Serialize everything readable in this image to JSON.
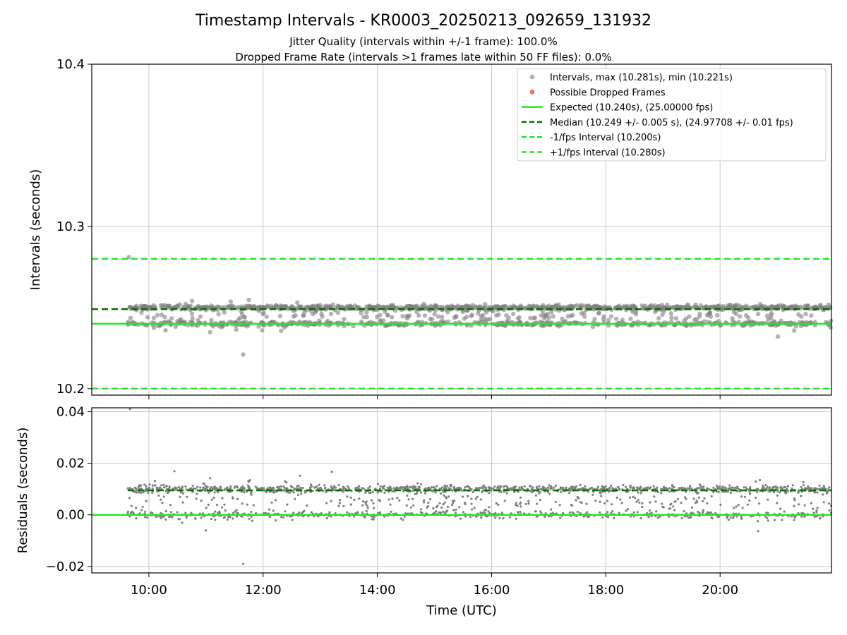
{
  "chart_data": [
    {
      "type": "scatter",
      "title": "Timestamp Intervals - KR0003_20250213_092659_131932",
      "subtitle_lines": [
        "Jitter Quality (intervals within +/-1 frame): 100.0%",
        "Dropped Frame Rate (intervals >1 frames late within 50 FF files): 0.0%"
      ],
      "xlabel": "",
      "ylabel": "Intervals (seconds)",
      "ylim": [
        10.196,
        10.4
      ],
      "xlim_hours": [
        9.0,
        21.95
      ],
      "y_ticks": [
        "10.2",
        "10.3",
        "10.4"
      ],
      "grid": true,
      "legend_position": "top-right",
      "legend": [
        {
          "label": "Intervals, max (10.281s), min (10.221s)",
          "kind": "marker",
          "color": "#a0a0a0"
        },
        {
          "label": "Possible Dropped Frames",
          "kind": "marker",
          "color": "#f07070"
        },
        {
          "label": "Expected (10.240s), (25.00000 fps)",
          "kind": "solid",
          "color": "#22e822"
        },
        {
          "label": "Median (10.249 +/- 0.005 s), (24.97708 +/- 0.01 fps)",
          "kind": "dashed",
          "color": "#007000"
        },
        {
          "label": "-1/fps Interval (10.200s)",
          "kind": "dashed",
          "color": "#22e822"
        },
        {
          "label": "+1/fps Interval (10.280s)",
          "kind": "dashed",
          "color": "#22e822"
        }
      ],
      "reference_lines": {
        "expected": 10.24,
        "median": 10.249,
        "minus_one_fps": 10.2,
        "plus_one_fps": 10.28
      },
      "series": [
        {
          "name": "Intervals, max (10.281s), min (10.221s)",
          "x_range_hours": [
            9.63,
            21.95
          ],
          "max": 10.281,
          "min": 10.221,
          "bands": [
            10.24,
            10.25
          ]
        }
      ]
    },
    {
      "type": "scatter",
      "ylabel": "Residuals (seconds)",
      "xlabel": "Time (UTC)",
      "ylim": [
        -0.0225,
        0.0415
      ],
      "y_ticks": [
        "0.04",
        "0.02",
        "0.00",
        "−0.02"
      ],
      "x_ticks": [
        "10:00",
        "12:00",
        "14:00",
        "16:00",
        "18:00",
        "20:00"
      ],
      "grid": true,
      "reference_lines": {
        "zero": 0.0,
        "median_residual": 0.0095
      },
      "series": [
        {
          "name": "Residuals",
          "x_range_hours": [
            9.63,
            21.95
          ],
          "max": 0.041,
          "min": -0.019,
          "bands": [
            0.0,
            0.01
          ]
        }
      ]
    }
  ],
  "colors": {
    "points": "#808080",
    "expected": "#22e822",
    "median": "#007000",
    "grid": "#c8c8c8",
    "axis": "#000000"
  }
}
